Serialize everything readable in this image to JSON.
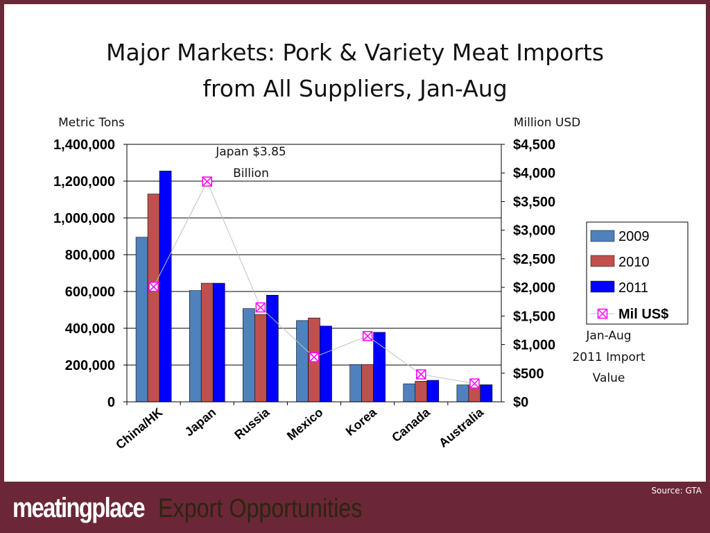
{
  "slide": {
    "title_line1": "Major Markets: Pork & Variety Meat Imports",
    "title_line2": "from All Suppliers, Jan-Aug"
  },
  "colors": {
    "s2009": "#4f81bd",
    "s2010": "#c0504d",
    "s2011": "#0000ff",
    "line": "#c0c0c0",
    "marker": "#ff00ff",
    "frame": "#6b2737"
  },
  "chart_data": {
    "type": "bar",
    "title": "",
    "left_axis_label": "Metric Tons",
    "right_axis_label": "Million USD",
    "categories": [
      "China/HK",
      "Japan",
      "Russia",
      "Mexico",
      "Korea",
      "Canada",
      "Australia"
    ],
    "series": [
      {
        "name": "2009",
        "values": [
          895000,
          605000,
          507000,
          442000,
          203000,
          98000,
          92000
        ]
      },
      {
        "name": "2010",
        "values": [
          1130000,
          645000,
          475000,
          456000,
          203000,
          112000,
          92000
        ]
      },
      {
        "name": "2011",
        "values": [
          1255000,
          645000,
          580000,
          412000,
          378000,
          117000,
          93000
        ]
      }
    ],
    "line_series": {
      "name": "Mil US$",
      "axis": "right",
      "values": [
        2010,
        3850,
        1650,
        780,
        1150,
        480,
        320
      ]
    },
    "left_ylim": [
      0,
      1400000
    ],
    "left_ticks": [
      "1,400,000",
      "1,200,000",
      "1,000,000",
      "800,000",
      "600,000",
      "400,000",
      "200,000",
      "0"
    ],
    "right_ylim": [
      0,
      4500
    ],
    "right_ticks": [
      "$4,500",
      "$4,000",
      "$3,500",
      "$3,000",
      "$2,500",
      "$2,000",
      "$1,500",
      "$1,000",
      "$500",
      "$0"
    ],
    "grid": "horizontal",
    "legend": "right",
    "annotations": {
      "japan_line1": "Japan $3.85",
      "japan_line2": "Billion",
      "note_line1": "Jan-Aug",
      "note_line2": "2011 Import",
      "note_line3": "Value"
    }
  },
  "footer": {
    "source": "Source: GTA",
    "brand": "meatingplace",
    "tagline": "Export Opportunities"
  }
}
